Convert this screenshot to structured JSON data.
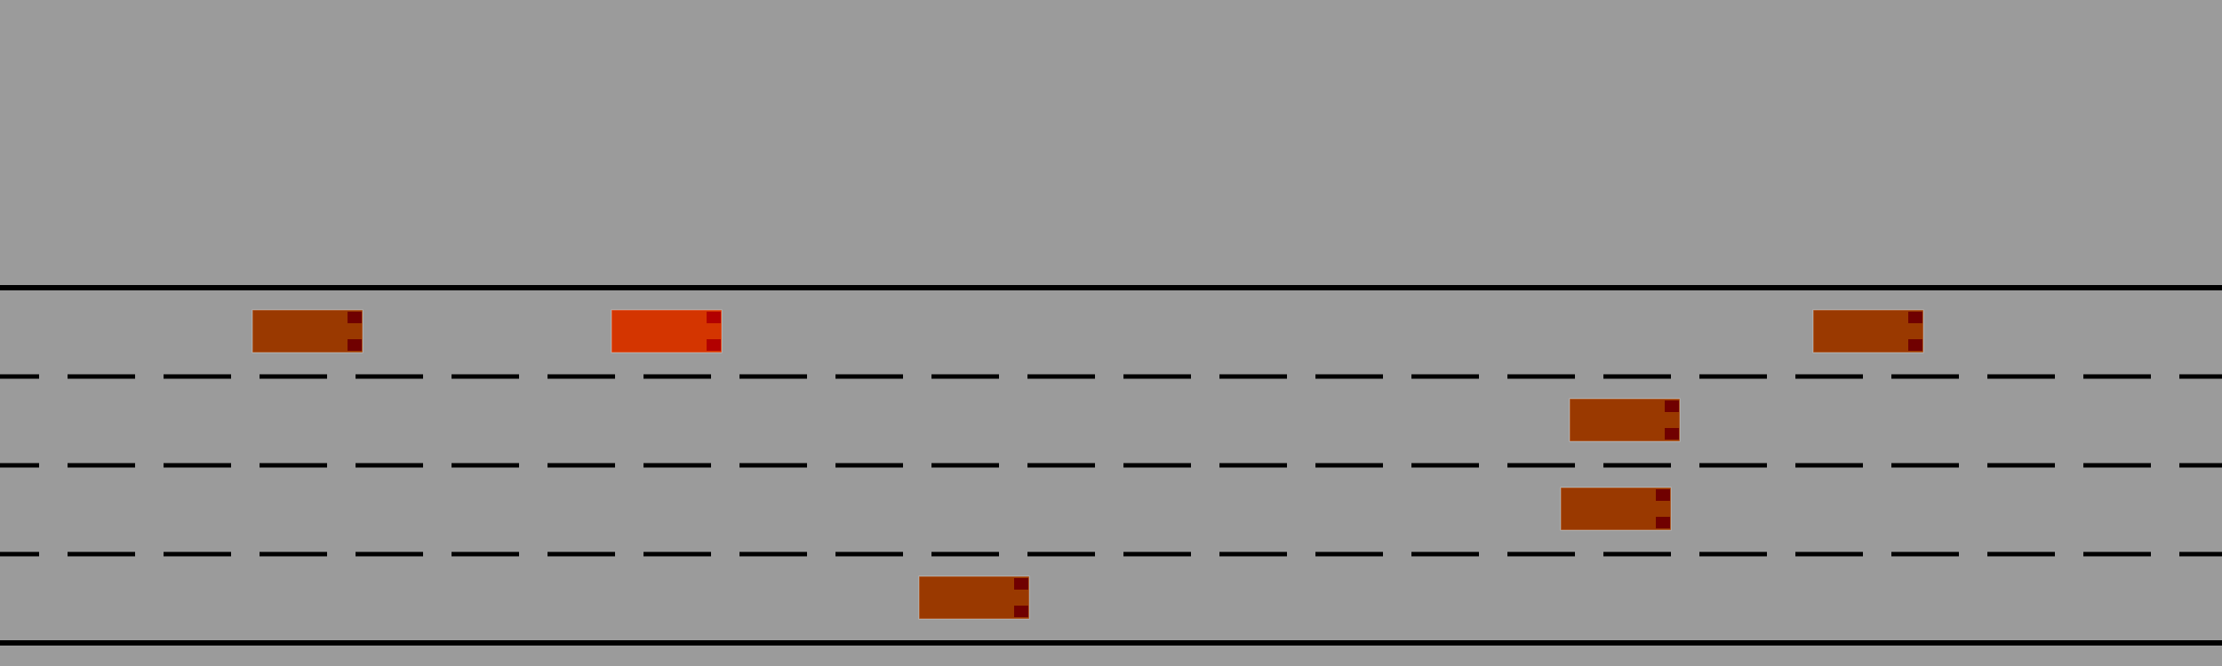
{
  "scene": {
    "background_color": "#9b9b9b",
    "edge_line_color": "#000000",
    "lane_marking_color": "#000000",
    "lane_count": 4
  },
  "colors": {
    "ego_body": "#d43500",
    "other_body": "#9a3900",
    "light_ego": "#b20000",
    "light_other": "#700000"
  },
  "vehicles": [
    {
      "id": "ego-vehicle",
      "lane": 0,
      "role": "ego"
    },
    {
      "id": "vehicle-1",
      "lane": 0,
      "role": "other"
    },
    {
      "id": "vehicle-2",
      "lane": 0,
      "role": "other"
    },
    {
      "id": "vehicle-3",
      "lane": 1,
      "role": "other"
    },
    {
      "id": "vehicle-4",
      "lane": 2,
      "role": "other"
    },
    {
      "id": "vehicle-5",
      "lane": 3,
      "role": "other"
    }
  ]
}
